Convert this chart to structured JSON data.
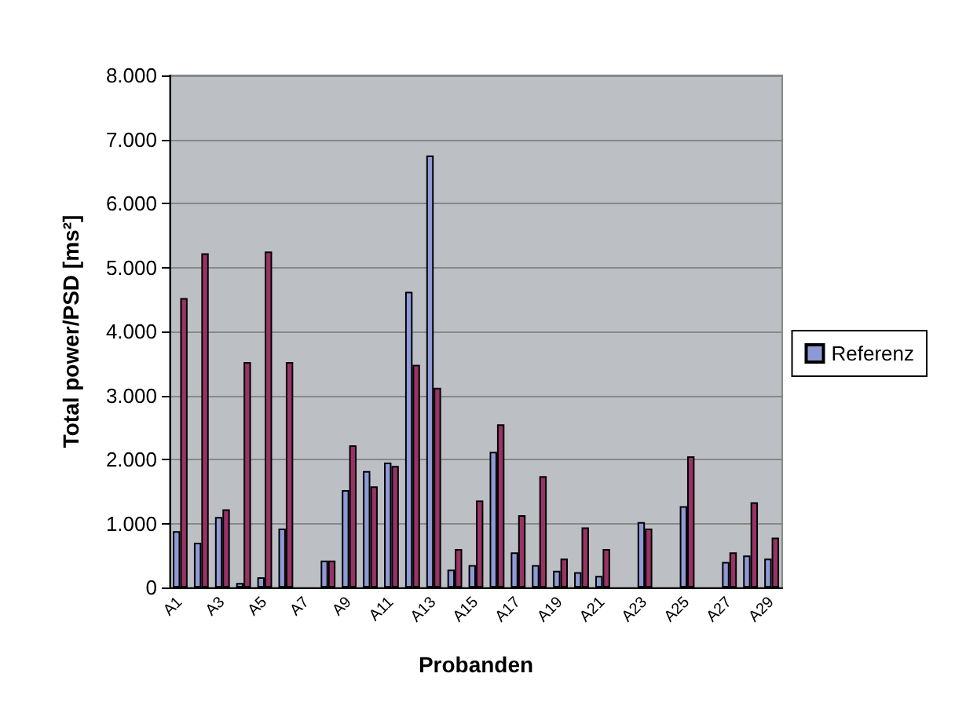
{
  "chart_data": {
    "type": "bar",
    "xlabel": "Probanden",
    "ylabel": "Total power/PSD [ms²]",
    "categories": [
      "A1",
      null,
      "A3",
      null,
      "A5",
      null,
      "A7",
      null,
      "A9",
      null,
      "A11",
      null,
      "A13",
      null,
      "A15",
      null,
      "A17",
      null,
      "A19",
      null,
      "A21",
      null,
      "A23",
      null,
      "A25",
      null,
      "A27",
      null,
      "A29"
    ],
    "series": [
      {
        "name": "Referenz",
        "color": "#8e9ad6",
        "values": [
          880,
          700,
          1100,
          70,
          160,
          920,
          null,
          420,
          1520,
          1820,
          1950,
          4620,
          6750,
          280,
          350,
          2120,
          550,
          350,
          260,
          240,
          180,
          null,
          1020,
          null,
          1270,
          null,
          400,
          500,
          450
        ]
      },
      {
        "color": "#993366",
        "values": [
          4520,
          5220,
          1220,
          3520,
          5250,
          3520,
          null,
          420,
          2220,
          1580,
          1900,
          3480,
          3120,
          600,
          1360,
          2550,
          1130,
          1740,
          450,
          940,
          600,
          null,
          920,
          null,
          2050,
          null,
          550,
          1330,
          780
        ]
      }
    ],
    "ylim": [
      0,
      8000
    ],
    "yticks": [
      {
        "value": 0,
        "label": "0"
      },
      {
        "value": 1000,
        "label": "1.000"
      },
      {
        "value": 2000,
        "label": "2.000"
      },
      {
        "value": 3000,
        "label": "3.000"
      },
      {
        "value": 4000,
        "label": "4.000"
      },
      {
        "value": 5000,
        "label": "5.000"
      },
      {
        "value": 6000,
        "label": "6.000"
      },
      {
        "value": 7000,
        "label": "7.000"
      },
      {
        "value": 8000,
        "label": "8.000"
      }
    ],
    "grid": "y",
    "legend": "right"
  }
}
